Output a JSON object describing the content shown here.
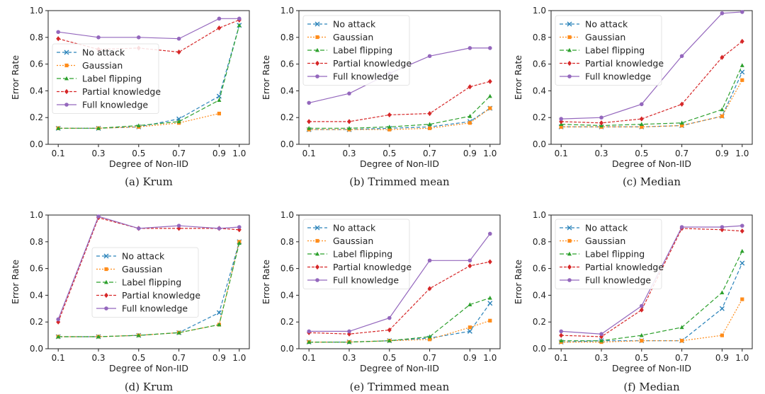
{
  "series_styles": [
    {
      "name": "No attack",
      "color": "#2b83ba",
      "dash": "5,3",
      "marker": "x"
    },
    {
      "name": "Gaussian",
      "color": "#ff8c1a",
      "dash": "2,2",
      "marker": "square"
    },
    {
      "name": "Label flipping",
      "color": "#2ca02c",
      "dash": "6,3",
      "marker": "tri"
    },
    {
      "name": "Partial knowledge",
      "color": "#d62728",
      "dash": "4,2",
      "marker": "diamond"
    },
    {
      "name": "Full knowledge",
      "color": "#9467bd",
      "dash": "",
      "marker": "circle"
    }
  ],
  "chart_data": [
    {
      "type": "line",
      "caption": "(a) Krum",
      "xlabel": "Degree of Non-IID",
      "ylabel": "Error Rate",
      "x": [
        0.1,
        0.3,
        0.5,
        0.7,
        0.9,
        1.0
      ],
      "xticks": [
        "0.1",
        "0.3",
        "0.5",
        "0.7",
        "0.9",
        "1.0"
      ],
      "ylim": [
        0,
        1
      ],
      "yticks": [
        "0.0",
        "0.2",
        "0.4",
        "0.6",
        "0.8",
        "1.0"
      ],
      "legend": "center-left",
      "series": [
        {
          "name": "No attack",
          "values": [
            0.12,
            0.12,
            0.13,
            0.19,
            0.36,
            0.89
          ]
        },
        {
          "name": "Gaussian",
          "values": [
            0.12,
            0.12,
            0.13,
            0.16,
            0.23,
            null
          ]
        },
        {
          "name": "Label flipping",
          "values": [
            0.12,
            0.12,
            0.14,
            0.17,
            0.33,
            0.89
          ]
        },
        {
          "name": "Partial knowledge",
          "values": [
            0.79,
            0.71,
            0.72,
            0.69,
            0.87,
            0.93
          ]
        },
        {
          "name": "Full knowledge",
          "values": [
            0.84,
            0.8,
            0.8,
            0.79,
            0.94,
            0.94
          ]
        }
      ]
    },
    {
      "type": "line",
      "caption": "(b) Trimmed mean",
      "xlabel": "Degree of Non-IID",
      "ylabel": "Error Rate",
      "x": [
        0.1,
        0.3,
        0.5,
        0.7,
        0.9,
        1.0
      ],
      "xticks": [
        "0.1",
        "0.3",
        "0.5",
        "0.7",
        "0.9",
        "1.0"
      ],
      "ylim": [
        0,
        1
      ],
      "yticks": [
        "0.0",
        "0.2",
        "0.4",
        "0.6",
        "0.8",
        "1.0"
      ],
      "legend": "top-left",
      "series": [
        {
          "name": "No attack",
          "values": [
            0.11,
            0.11,
            0.12,
            0.13,
            0.17,
            0.27
          ]
        },
        {
          "name": "Gaussian",
          "values": [
            0.11,
            0.11,
            0.11,
            0.12,
            0.16,
            0.27
          ]
        },
        {
          "name": "Label flipping",
          "values": [
            0.12,
            0.12,
            0.13,
            0.15,
            0.21,
            0.36
          ]
        },
        {
          "name": "Partial knowledge",
          "values": [
            0.17,
            0.17,
            0.22,
            0.23,
            0.43,
            0.47
          ]
        },
        {
          "name": "Full knowledge",
          "values": [
            0.31,
            0.38,
            0.53,
            0.66,
            0.72,
            0.72
          ]
        }
      ]
    },
    {
      "type": "line",
      "caption": "(c) Median",
      "xlabel": "Degree of Non-IID",
      "ylabel": "Error Rate",
      "x": [
        0.1,
        0.3,
        0.5,
        0.7,
        0.9,
        1.0
      ],
      "xticks": [
        "0.1",
        "0.3",
        "0.5",
        "0.7",
        "0.9",
        "1.0"
      ],
      "ylim": [
        0,
        1
      ],
      "yticks": [
        "0.0",
        "0.2",
        "0.4",
        "0.6",
        "0.8",
        "1.0"
      ],
      "legend": "top-left",
      "series": [
        {
          "name": "No attack",
          "values": [
            0.13,
            0.13,
            0.13,
            0.14,
            0.21,
            0.54
          ]
        },
        {
          "name": "Gaussian",
          "values": [
            0.13,
            0.13,
            0.13,
            0.14,
            0.21,
            0.48
          ]
        },
        {
          "name": "Label flipping",
          "values": [
            0.15,
            0.14,
            0.15,
            0.16,
            0.26,
            0.59
          ]
        },
        {
          "name": "Partial knowledge",
          "values": [
            0.17,
            0.16,
            0.19,
            0.3,
            0.65,
            0.77
          ]
        },
        {
          "name": "Full knowledge",
          "values": [
            0.19,
            0.2,
            0.3,
            0.66,
            0.98,
            0.99
          ]
        }
      ]
    },
    {
      "type": "line",
      "caption": "(d) Krum",
      "xlabel": "Degree of Non-IID",
      "ylabel": "Error Rate",
      "x": [
        0.1,
        0.3,
        0.5,
        0.7,
        0.9,
        1.0
      ],
      "xticks": [
        "0.1",
        "0.3",
        "0.5",
        "0.7",
        "0.9",
        "1.0"
      ],
      "ylim": [
        0,
        1
      ],
      "yticks": [
        "0.0",
        "0.2",
        "0.4",
        "0.6",
        "0.8",
        "1.0"
      ],
      "legend": "center",
      "series": [
        {
          "name": "No attack",
          "values": [
            0.09,
            0.09,
            0.1,
            0.12,
            0.27,
            0.8
          ]
        },
        {
          "name": "Gaussian",
          "values": [
            0.09,
            0.09,
            0.1,
            0.12,
            0.18,
            0.8
          ]
        },
        {
          "name": "Label flipping",
          "values": [
            0.09,
            0.09,
            0.1,
            0.12,
            0.18,
            0.79
          ]
        },
        {
          "name": "Partial knowledge",
          "values": [
            0.2,
            0.98,
            0.9,
            0.9,
            0.9,
            0.89
          ]
        },
        {
          "name": "Full knowledge",
          "values": [
            0.22,
            0.99,
            0.9,
            0.92,
            0.9,
            0.91
          ]
        }
      ]
    },
    {
      "type": "line",
      "caption": "(e) Trimmed mean",
      "xlabel": "Degree of Non-IID",
      "ylabel": "Error Rate",
      "x": [
        0.1,
        0.3,
        0.5,
        0.7,
        0.9,
        1.0
      ],
      "xticks": [
        "0.1",
        "0.3",
        "0.5",
        "0.7",
        "0.9",
        "1.0"
      ],
      "ylim": [
        0,
        1
      ],
      "yticks": [
        "0.0",
        "0.2",
        "0.4",
        "0.6",
        "0.8",
        "1.0"
      ],
      "legend": "top-left",
      "series": [
        {
          "name": "No attack",
          "values": [
            0.05,
            0.05,
            0.06,
            0.08,
            0.13,
            0.34
          ]
        },
        {
          "name": "Gaussian",
          "values": [
            0.05,
            0.05,
            0.06,
            0.07,
            0.16,
            0.21
          ]
        },
        {
          "name": "Label flipping",
          "values": [
            0.05,
            0.05,
            0.06,
            0.09,
            0.33,
            0.38
          ]
        },
        {
          "name": "Partial knowledge",
          "values": [
            0.12,
            0.11,
            0.14,
            0.45,
            0.62,
            0.65
          ]
        },
        {
          "name": "Full knowledge",
          "values": [
            0.13,
            0.13,
            0.23,
            0.66,
            0.66,
            0.86
          ]
        }
      ]
    },
    {
      "type": "line",
      "caption": "(f) Median",
      "xlabel": "Degree of Non-IID",
      "ylabel": "Error Rate",
      "x": [
        0.1,
        0.3,
        0.5,
        0.7,
        0.9,
        1.0
      ],
      "xticks": [
        "0.1",
        "0.3",
        "0.5",
        "0.7",
        "0.9",
        "1.0"
      ],
      "ylim": [
        0,
        1
      ],
      "yticks": [
        "0.0",
        "0.2",
        "0.4",
        "0.6",
        "0.8",
        "1.0"
      ],
      "legend": "top-left",
      "series": [
        {
          "name": "No attack",
          "values": [
            0.05,
            0.06,
            0.06,
            0.06,
            0.3,
            0.64
          ]
        },
        {
          "name": "Gaussian",
          "values": [
            0.05,
            0.05,
            0.06,
            0.06,
            0.1,
            0.37
          ]
        },
        {
          "name": "Label flipping",
          "values": [
            0.06,
            0.06,
            0.1,
            0.16,
            0.42,
            0.73
          ]
        },
        {
          "name": "Partial knowledge",
          "values": [
            0.1,
            0.09,
            0.29,
            0.9,
            0.89,
            0.88
          ]
        },
        {
          "name": "Full knowledge",
          "values": [
            0.13,
            0.11,
            0.32,
            0.91,
            0.91,
            0.92
          ]
        }
      ]
    }
  ]
}
